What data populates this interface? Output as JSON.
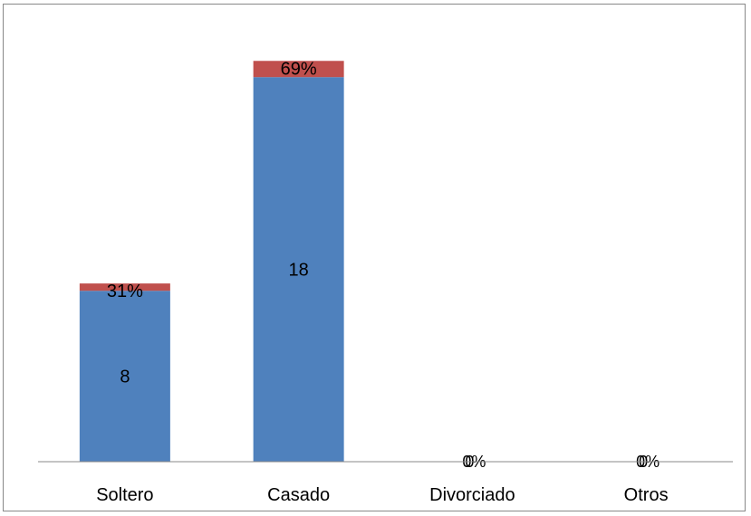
{
  "chart_data": {
    "type": "bar",
    "stacked": true,
    "categories": [
      "Soltero",
      "Casado",
      "Divorciado",
      "Otros"
    ],
    "series": [
      {
        "values": [
          8,
          18,
          0,
          0
        ],
        "labels": [
          "8",
          "18",
          "0",
          "0"
        ],
        "color": "#4F81BD"
      },
      {
        "values": [
          0.31,
          0.69,
          0,
          0
        ],
        "labels": [
          "31%",
          "69%",
          "0%",
          "0%"
        ],
        "color": "#C0504D"
      }
    ],
    "ylim": [
      0,
      20
    ],
    "grid": false,
    "legend": "none"
  }
}
